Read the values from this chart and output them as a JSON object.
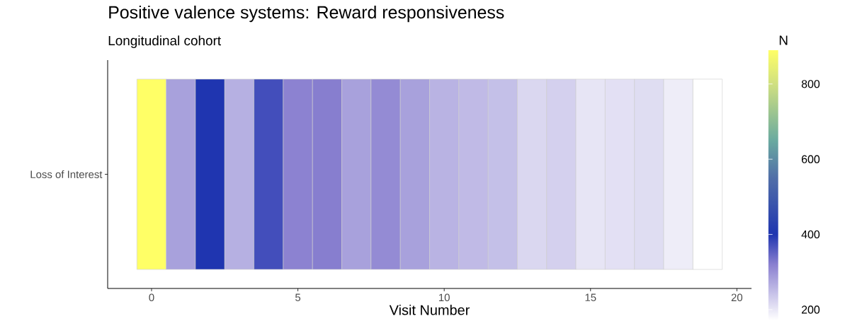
{
  "chart_data": {
    "type": "heatmap",
    "title": "Positive valence systems: Reward responsiveness",
    "subtitle": "Longitudinal cohort",
    "xlabel": "Visit Number",
    "clabel": "N",
    "categories": [
      "0",
      null,
      null,
      null,
      null,
      "5",
      null,
      null,
      null,
      null,
      "10",
      null,
      null,
      null,
      null,
      "15",
      null,
      null,
      null,
      null,
      "20"
    ],
    "y_categories": [
      "Loss of Interest"
    ],
    "cells": [
      [
        890,
        282,
        400,
        264,
        373,
        318,
        322,
        282,
        307,
        282,
        261,
        252,
        246,
        219,
        227,
        202,
        208,
        212,
        193,
        172,
        null
      ]
    ],
    "clim": [
      172,
      890
    ],
    "cticks": [
      200,
      400,
      600,
      800
    ]
  }
}
